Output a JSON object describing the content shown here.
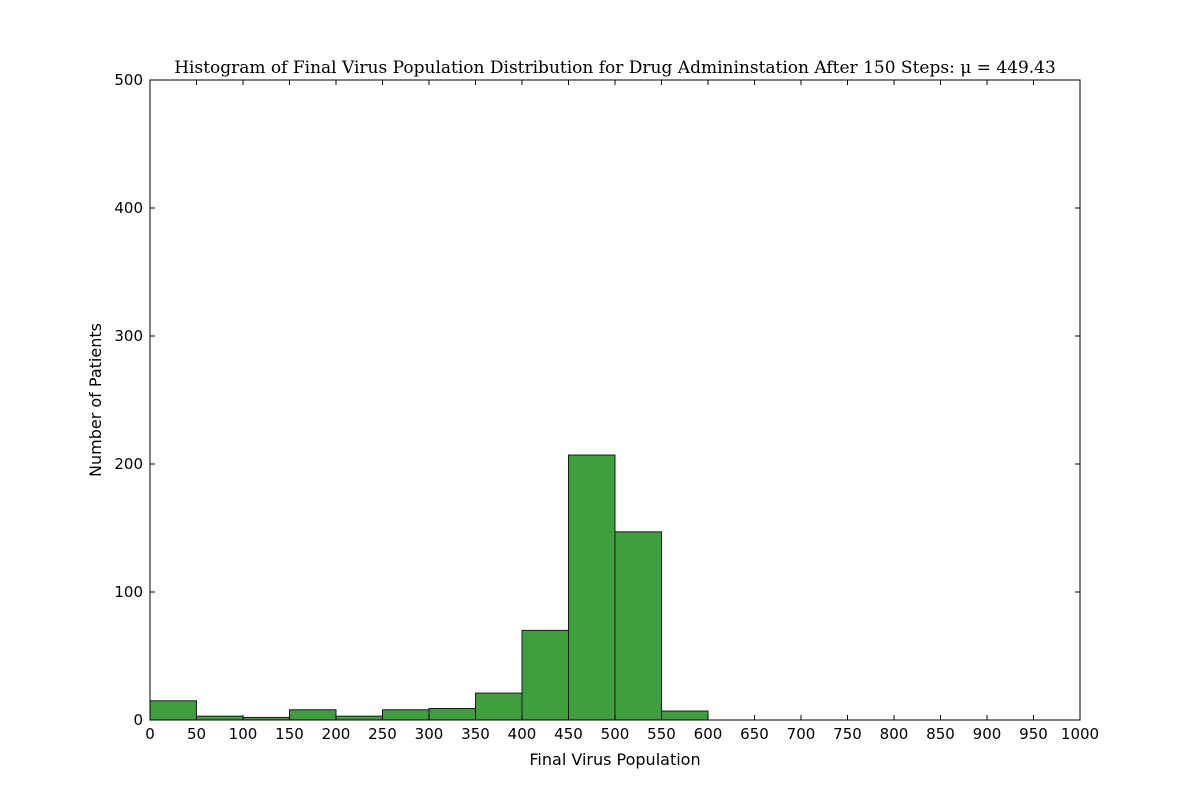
{
  "chart_data": {
    "type": "bar",
    "title": "Histogram of Final Virus Population Distribution for Drug Admininstation After 150 Steps: μ = 449.43",
    "xlabel": "Final Virus Population",
    "ylabel": "Number of Patients",
    "xlim": [
      0,
      1000
    ],
    "ylim": [
      0,
      500
    ],
    "x_ticks": [
      "0",
      "50",
      "100",
      "150",
      "200",
      "250",
      "300",
      "350",
      "400",
      "450",
      "500",
      "550",
      "600",
      "650",
      "700",
      "750",
      "800",
      "850",
      "900",
      "950",
      "1000"
    ],
    "y_ticks": [
      "0",
      "100",
      "200",
      "300",
      "400",
      "500"
    ],
    "bin_edges": [
      0,
      50,
      100,
      150,
      200,
      250,
      300,
      350,
      400,
      450,
      500,
      550,
      600,
      650,
      700,
      750,
      800,
      850,
      900,
      950,
      1000
    ],
    "values": [
      15,
      3,
      2,
      8,
      3,
      8,
      9,
      21,
      70,
      207,
      147,
      7,
      0,
      0,
      0,
      0,
      0,
      0,
      0,
      0
    ],
    "bar_color": "#3f9f3f",
    "edge_color": "#1a1a1a",
    "grid": false,
    "legend": "none"
  }
}
